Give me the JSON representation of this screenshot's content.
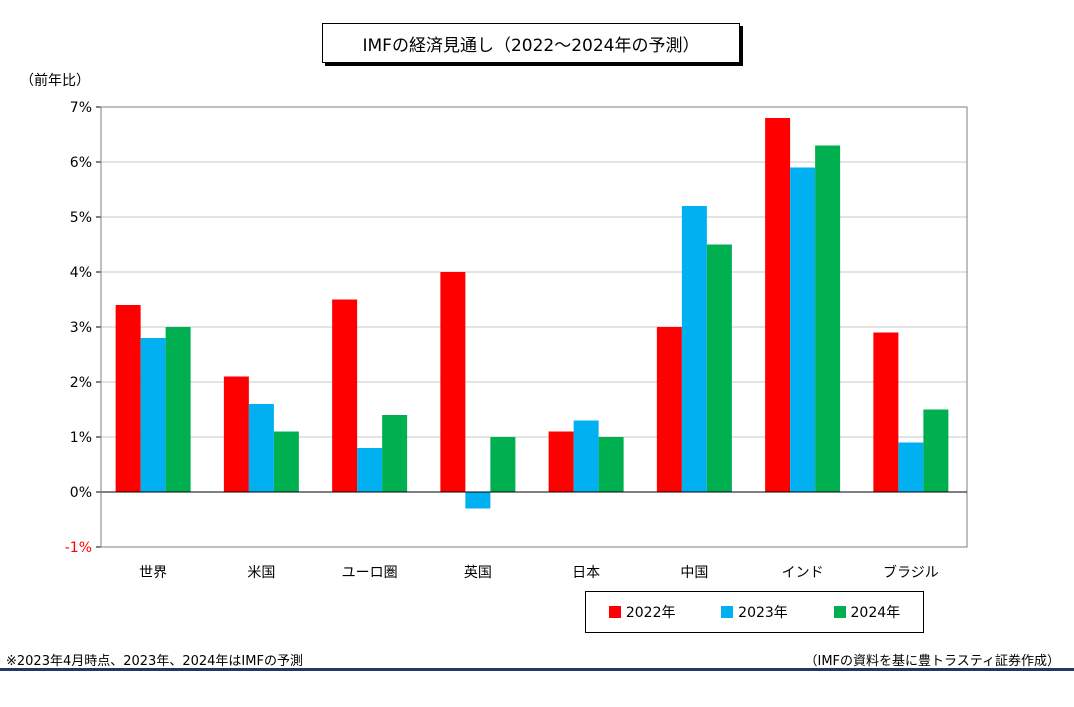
{
  "chart_data": {
    "type": "bar",
    "title": "IMFの経済見通し（2022～2024年の予測）",
    "ylabel": "（前年比）",
    "ylim": [
      -1,
      7
    ],
    "yticks": [
      "-1%",
      "0%",
      "1%",
      "2%",
      "3%",
      "4%",
      "5%",
      "6%",
      "7%"
    ],
    "ytick_values": [
      -1,
      0,
      1,
      2,
      3,
      4,
      5,
      6,
      7
    ],
    "negative_tick_color": "#ff0000",
    "grid": true,
    "legend_position": "bottom-right",
    "categories": [
      "世界",
      "米国",
      "ユーロ圏",
      "英国",
      "日本",
      "中国",
      "インド",
      "ブラジル"
    ],
    "series": [
      {
        "name": "2022年",
        "color": "#ff0000",
        "values": [
          3.4,
          2.1,
          3.5,
          4.0,
          1.1,
          3.0,
          6.8,
          2.9
        ]
      },
      {
        "name": "2023年",
        "color": "#00b0f0",
        "values": [
          2.8,
          1.6,
          0.8,
          -0.3,
          1.3,
          5.2,
          5.9,
          0.9
        ]
      },
      {
        "name": "2024年",
        "color": "#00b050",
        "values": [
          3.0,
          1.1,
          1.4,
          1.0,
          1.0,
          4.5,
          6.3,
          1.5
        ]
      }
    ]
  },
  "footnote": "※2023年4月時点、2023年、2024年はIMFの予測",
  "source": "（IMFの資料を基に豊トラスティ証券作成）"
}
